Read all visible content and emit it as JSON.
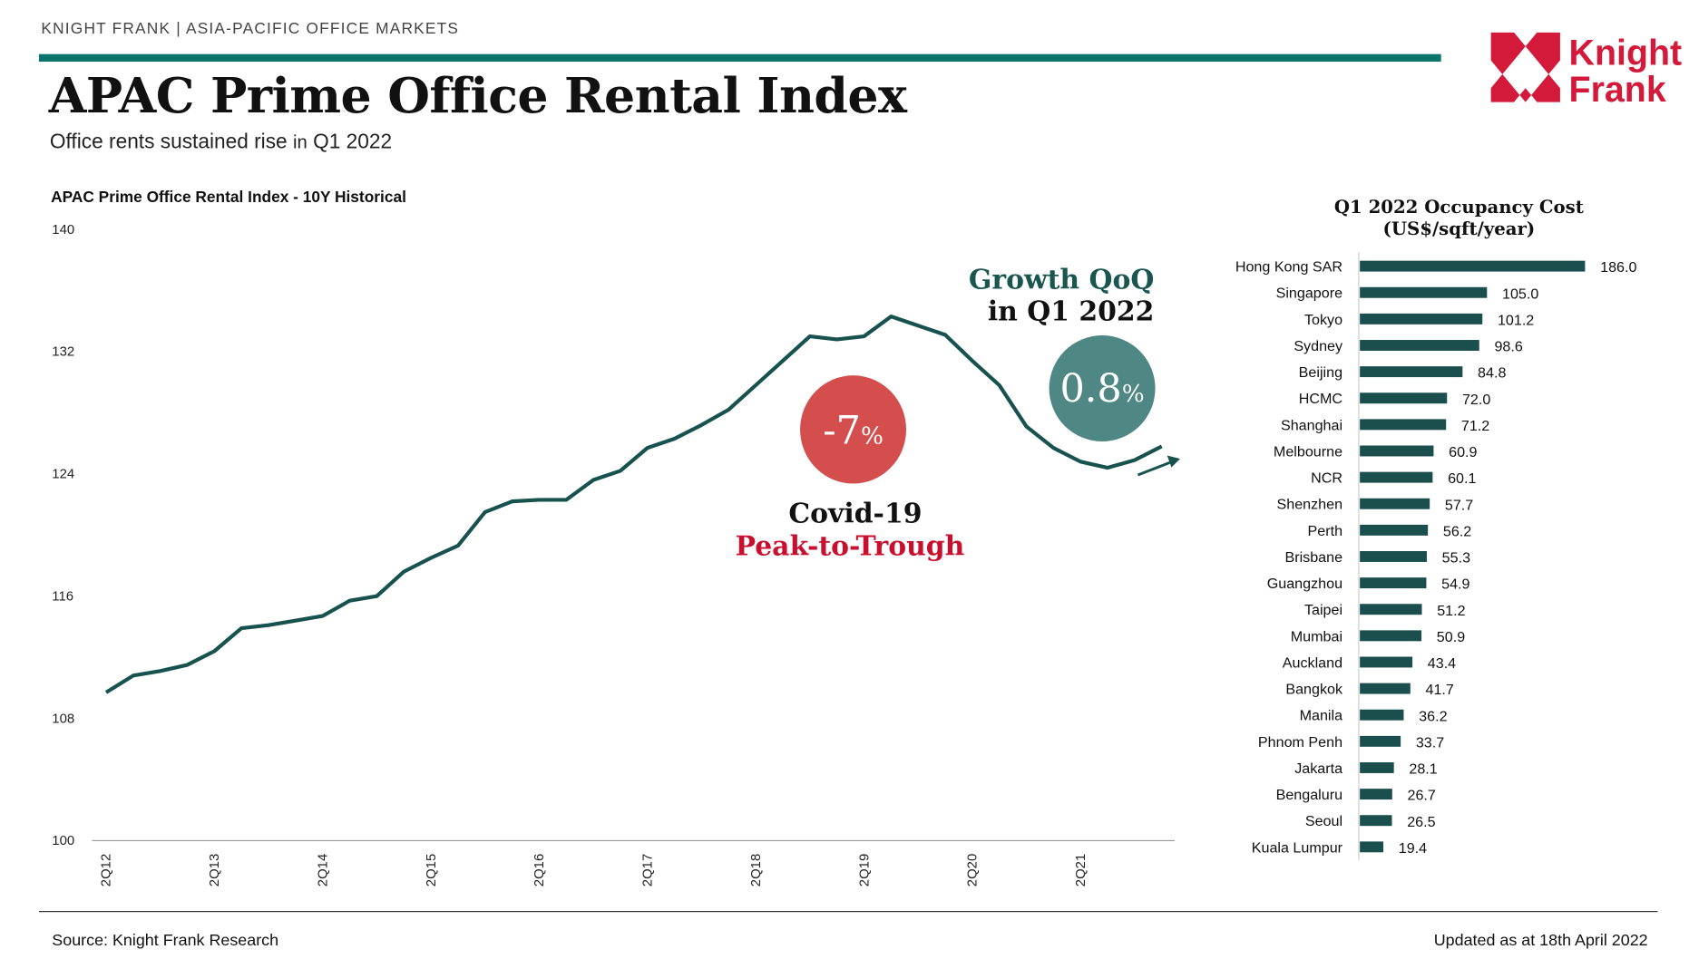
{
  "header": {
    "kicker": "KNIGHT FRANK | ASIA-PACIFIC OFFICE MARKETS",
    "title": "APAC Prime Office Rental Index",
    "subtitle_main": "Office rents sustained rise ",
    "subtitle_small": "in",
    "subtitle_end": " Q1 2022",
    "logo_text": [
      "Knight",
      "Frank"
    ]
  },
  "colors": {
    "accent": "#0b756d",
    "line": "#17524f",
    "bar": "#1a4f4e",
    "red": "#d44e4e",
    "teal_bubble": "#4e8784",
    "crimson": "#c8102e",
    "logo": "#d31a3a"
  },
  "annotations": {
    "growth_title": "Growth QoQ",
    "growth_sub": "in Q1 2022",
    "growth_value": "0.8",
    "growth_unit": "%",
    "covid_value": "-7",
    "covid_unit": "%",
    "covid_title": "Covid-19",
    "covid_sub": "Peak-to-Trough"
  },
  "chart_data": [
    {
      "type": "line",
      "title": "APAC Prime Office Rental Index - 10Y Historical",
      "ylim": [
        100,
        140
      ],
      "yticks": [
        100,
        108,
        116,
        124,
        132,
        140
      ],
      "xtick_labels": [
        "2Q12",
        "2Q13",
        "2Q14",
        "2Q15",
        "2Q16",
        "2Q17",
        "2Q18",
        "2Q19",
        "2Q20",
        "2Q21"
      ],
      "x": [
        "2Q12",
        "3Q12",
        "4Q12",
        "1Q13",
        "2Q13",
        "3Q13",
        "4Q13",
        "1Q14",
        "2Q14",
        "3Q14",
        "4Q14",
        "1Q15",
        "2Q15",
        "3Q15",
        "4Q15",
        "1Q16",
        "2Q16",
        "3Q16",
        "4Q16",
        "1Q17",
        "2Q17",
        "3Q17",
        "4Q17",
        "1Q18",
        "2Q18",
        "3Q18",
        "4Q18",
        "1Q19",
        "2Q19",
        "3Q19",
        "4Q19",
        "1Q20",
        "2Q20",
        "3Q20",
        "4Q20",
        "1Q21",
        "2Q21",
        "3Q21",
        "4Q21",
        "1Q22"
      ],
      "values": [
        109.7,
        110.8,
        111.1,
        111.5,
        112.4,
        113.9,
        114.1,
        114.4,
        114.7,
        115.7,
        116.0,
        117.6,
        118.5,
        119.3,
        121.5,
        122.2,
        122.3,
        122.3,
        123.6,
        124.2,
        125.7,
        126.3,
        127.2,
        128.2,
        129.8,
        131.4,
        133.0,
        132.8,
        133.0,
        134.3,
        133.7,
        133.1,
        131.4,
        129.8,
        127.1,
        125.7,
        124.8,
        124.4,
        124.9,
        125.8
      ],
      "grid": false
    },
    {
      "type": "bar",
      "orientation": "horizontal",
      "title": "Q1 2022 Occupancy Cost (US$/sqft/year)",
      "title_lines": [
        "Q1 2022 Occupancy Cost",
        "(US$/sqft/year)"
      ],
      "categories": [
        "Hong Kong SAR",
        "Singapore",
        "Tokyo",
        "Sydney",
        "Beijing",
        "HCMC",
        "Shanghai",
        "Melbourne",
        "NCR",
        "Shenzhen",
        "Perth",
        "Brisbane",
        "Guangzhou",
        "Taipei",
        "Mumbai",
        "Auckland",
        "Bangkok",
        "Manila",
        "Phnom Penh",
        "Jakarta",
        "Bengaluru",
        "Seoul",
        "Kuala Lumpur"
      ],
      "values": [
        186.0,
        105.0,
        101.2,
        98.6,
        84.8,
        72.0,
        71.2,
        60.9,
        60.1,
        57.7,
        56.2,
        55.3,
        54.9,
        51.2,
        50.9,
        43.4,
        41.7,
        36.2,
        33.7,
        28.1,
        26.7,
        26.5,
        19.4
      ],
      "value_labels": [
        "186.0",
        "105.0",
        "101.2",
        "98.6",
        "84.8",
        "72.0",
        "71.2",
        "60.9",
        "60.1",
        "57.7",
        "56.2",
        "55.3",
        "54.9",
        "51.2",
        "50.9",
        "43.4",
        "41.7",
        "36.2",
        "33.7",
        "28.1",
        "26.7",
        "26.5",
        "19.4"
      ]
    }
  ],
  "footer": {
    "source": "Source: Knight Frank Research",
    "updated": "Updated as at 18th April 2022"
  }
}
